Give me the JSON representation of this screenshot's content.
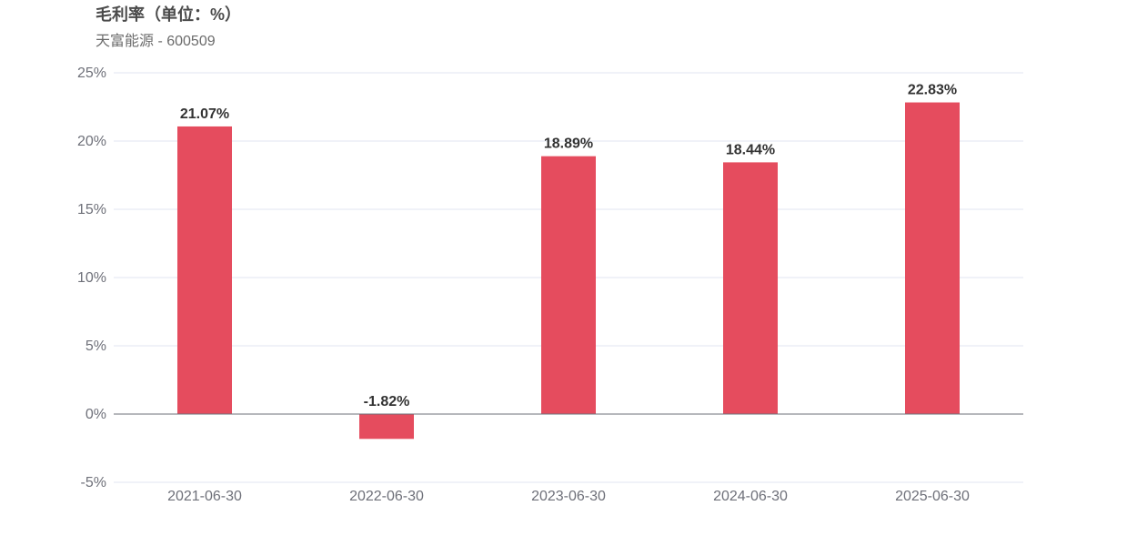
{
  "chart_data": {
    "type": "bar",
    "title": "毛利率（单位：%）",
    "subtitle": "天富能源 - 600509",
    "categories": [
      "2021-06-30",
      "2022-06-30",
      "2023-06-30",
      "2024-06-30",
      "2025-06-30"
    ],
    "values": [
      21.07,
      -1.82,
      18.89,
      18.44,
      22.83
    ],
    "value_labels": [
      "21.07%",
      "-1.82%",
      "18.89%",
      "18.44%",
      "22.83%"
    ],
    "ylim": [
      -5,
      25
    ],
    "yticks": [
      -5,
      0,
      5,
      10,
      15,
      20,
      25
    ],
    "ytick_labels": [
      "-5%",
      "0%",
      "5%",
      "10%",
      "15%",
      "20%",
      "25%"
    ],
    "xlabel": "",
    "ylabel": "",
    "grid": true,
    "bar_color": "#e54c5e",
    "grid_color": "#e0e6f1",
    "axis_color": "#6e7079"
  }
}
